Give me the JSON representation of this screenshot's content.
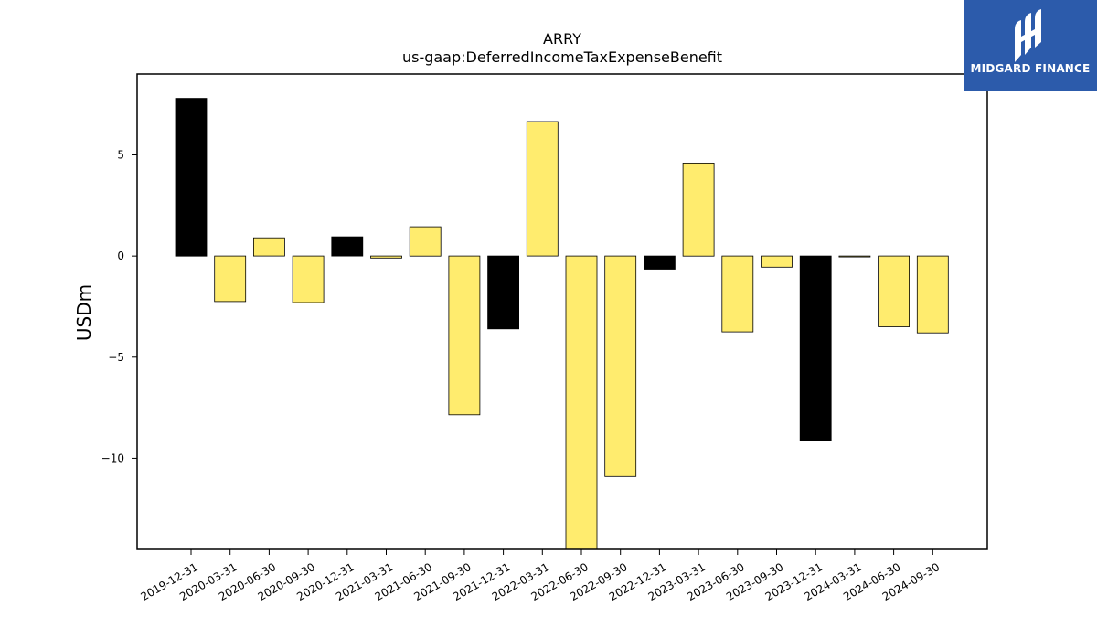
{
  "chart_data": {
    "type": "bar",
    "title": "ARRY",
    "subtitle": "us-gaap:DeferredIncomeTaxExpenseBenefit",
    "xlabel": "",
    "ylabel": "USDm",
    "ylim": [
      -14.5,
      9.0
    ],
    "yticks": [
      5,
      0,
      -5,
      -10
    ],
    "ytick_labels": [
      "5",
      "0",
      "−5",
      "−10"
    ],
    "categories": [
      "2019-12-31",
      "2020-03-31",
      "2020-06-30",
      "2020-09-30",
      "2020-12-31",
      "2021-03-31",
      "2021-06-30",
      "2021-09-30",
      "2021-12-31",
      "2022-03-31",
      "2022-06-30",
      "2022-09-30",
      "2022-12-31",
      "2023-03-31",
      "2023-06-30",
      "2023-09-30",
      "2023-12-31",
      "2024-03-31",
      "2024-06-30",
      "2024-09-30"
    ],
    "values": [
      7.8,
      -2.25,
      0.9,
      -2.3,
      0.95,
      -0.1,
      1.45,
      -7.85,
      -3.6,
      6.65,
      -14.5,
      -10.9,
      -0.65,
      4.6,
      -3.75,
      -0.55,
      -9.15,
      -0.02,
      -3.5,
      -3.8
    ],
    "bar_colors": [
      "#000000",
      "#ffec6e",
      "#ffec6e",
      "#ffec6e",
      "#000000",
      "#ffec6e",
      "#ffec6e",
      "#ffec6e",
      "#000000",
      "#ffec6e",
      "#ffec6e",
      "#ffec6e",
      "#000000",
      "#ffec6e",
      "#ffec6e",
      "#ffec6e",
      "#000000",
      "#ffec6e",
      "#ffec6e",
      "#ffec6e"
    ],
    "grid": false,
    "legend": "none"
  },
  "logo": {
    "text": "MIDGARD FINANCE",
    "background": "#2c5bab"
  }
}
